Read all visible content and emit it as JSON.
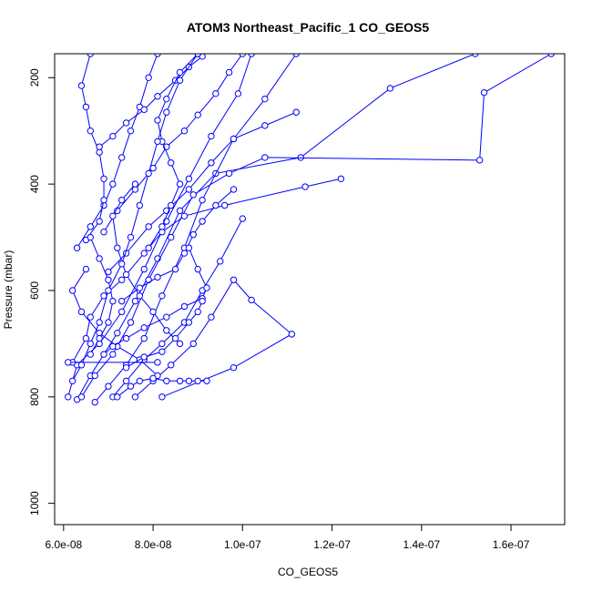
{
  "chart_data": {
    "type": "line",
    "title": "ATOM3 Northeast_Pacific_1 CO_GEOS5",
    "xlabel": "CO_GEOS5",
    "ylabel": "Pressure (mbar)",
    "xlim": [
      5.8e-08,
      1.72e-07
    ],
    "ylim": [
      1040,
      155
    ],
    "y_axis_reversed": true,
    "grid": false,
    "x_ticks": [
      {
        "value": 6e-08,
        "label": "6.0e-08"
      },
      {
        "value": 8e-08,
        "label": "8.0e-08"
      },
      {
        "value": 1e-07,
        "label": "1.0e-07"
      },
      {
        "value": 1.2e-07,
        "label": "1.2e-07"
      },
      {
        "value": 1.4e-07,
        "label": "1.4e-07"
      },
      {
        "value": 1.6e-07,
        "label": "1.6e-07"
      }
    ],
    "y_ticks": [
      {
        "value": 200,
        "label": "200"
      },
      {
        "value": 400,
        "label": "400"
      },
      {
        "value": 600,
        "label": "600"
      },
      {
        "value": 800,
        "label": "800"
      },
      {
        "value": 1000,
        "label": "1000"
      }
    ],
    "line_color": "#0000ff",
    "marker": "open-circle",
    "series": [
      {
        "points": [
          [
            6.1e-08,
            800
          ],
          [
            6.3e-08,
            740
          ],
          [
            6.8e-08,
            700
          ],
          [
            7.3e-08,
            640
          ],
          [
            7.8e-08,
            560
          ],
          [
            8.3e-08,
            470
          ],
          [
            8.8e-08,
            390
          ],
          [
            9.3e-08,
            310
          ],
          [
            9.9e-08,
            230
          ],
          [
            1.02e-07,
            155
          ]
        ]
      },
      {
        "points": [
          [
            6.3e-08,
            805
          ],
          [
            6.6e-08,
            760
          ],
          [
            6.9e-08,
            720
          ],
          [
            7.2e-08,
            680
          ],
          [
            7.6e-08,
            620
          ],
          [
            8.1e-08,
            540
          ],
          [
            8.6e-08,
            450
          ],
          [
            9.4e-08,
            380
          ],
          [
            1.13e-07,
            350
          ],
          [
            1.33e-07,
            220
          ],
          [
            1.52e-07,
            155
          ]
        ]
      },
      {
        "points": [
          [
            6.7e-08,
            810
          ],
          [
            7e-08,
            780
          ],
          [
            7.4e-08,
            740
          ],
          [
            7.8e-08,
            690
          ],
          [
            8.2e-08,
            610
          ],
          [
            8.7e-08,
            520
          ],
          [
            9.1e-08,
            430
          ],
          [
            9.8e-08,
            315
          ],
          [
            1.05e-07,
            240
          ],
          [
            1.12e-07,
            155
          ]
        ]
      },
      {
        "points": [
          [
            6.4e-08,
            800
          ],
          [
            6.7e-08,
            760
          ],
          [
            7.1e-08,
            720
          ],
          [
            7.5e-08,
            660
          ],
          [
            7.9e-08,
            580
          ],
          [
            8.4e-08,
            500
          ],
          [
            8.9e-08,
            420
          ],
          [
            9.7e-08,
            380
          ],
          [
            1.05e-07,
            350
          ],
          [
            1.53e-07,
            355
          ],
          [
            1.54e-07,
            228
          ],
          [
            1.69e-07,
            155
          ]
        ]
      },
      {
        "points": [
          [
            7.1e-08,
            800
          ],
          [
            7.4e-08,
            770
          ],
          [
            7.8e-08,
            730
          ],
          [
            8.2e-08,
            700
          ],
          [
            8.7e-08,
            660
          ],
          [
            9.1e-08,
            600
          ],
          [
            9.5e-08,
            545
          ],
          [
            1e-07,
            465
          ]
        ]
      },
      {
        "points": [
          [
            7.6e-08,
            800
          ],
          [
            8e-08,
            770
          ],
          [
            8.4e-08,
            740
          ],
          [
            8.9e-08,
            700
          ],
          [
            9.3e-08,
            650
          ],
          [
            9.8e-08,
            580
          ],
          [
            1.02e-07,
            618
          ],
          [
            1.11e-07,
            682
          ],
          [
            9.8e-08,
            745
          ],
          [
            8.2e-08,
            800
          ]
        ]
      },
      {
        "points": [
          [
            6.2e-08,
            735
          ],
          [
            6.5e-08,
            690
          ],
          [
            6.6e-08,
            650
          ],
          [
            6.9e-08,
            610
          ],
          [
            7.3e-08,
            580
          ],
          [
            7.8e-08,
            530
          ],
          [
            8.2e-08,
            490
          ],
          [
            8.7e-08,
            460
          ],
          [
            9.6e-08,
            440
          ],
          [
            1.14e-07,
            405
          ],
          [
            1.22e-07,
            390
          ]
        ]
      },
      {
        "points": [
          [
            6.5e-08,
            560
          ],
          [
            6.2e-08,
            600
          ],
          [
            6.4e-08,
            640
          ],
          [
            6.8e-08,
            680
          ],
          [
            7.2e-08,
            705
          ],
          [
            7.7e-08,
            730
          ],
          [
            8.1e-08,
            760
          ]
        ]
      },
      {
        "points": [
          [
            6.3e-08,
            520
          ],
          [
            6.6e-08,
            480
          ],
          [
            6.9e-08,
            440
          ],
          [
            7.1e-08,
            400
          ],
          [
            7.3e-08,
            350
          ],
          [
            7.5e-08,
            300
          ],
          [
            7.7e-08,
            255
          ],
          [
            7.9e-08,
            200
          ],
          [
            8.1e-08,
            155
          ]
        ]
      },
      {
        "points": [
          [
            6.9e-08,
            490
          ],
          [
            7.2e-08,
            450
          ],
          [
            7.6e-08,
            410
          ],
          [
            8e-08,
            370
          ],
          [
            8.3e-08,
            330
          ],
          [
            8.7e-08,
            300
          ],
          [
            9e-08,
            270
          ],
          [
            9.4e-08,
            230
          ],
          [
            9.7e-08,
            190
          ],
          [
            1e-07,
            155
          ]
        ]
      },
      {
        "points": [
          [
            7e-08,
            565
          ],
          [
            7.4e-08,
            530
          ],
          [
            7.9e-08,
            480
          ],
          [
            8.3e-08,
            450
          ],
          [
            8.8e-08,
            410
          ],
          [
            9.3e-08,
            360
          ],
          [
            9.8e-08,
            315
          ],
          [
            1.05e-07,
            290
          ],
          [
            1.12e-07,
            265
          ]
        ]
      },
      {
        "points": [
          [
            6.5e-08,
            505
          ],
          [
            6.8e-08,
            470
          ],
          [
            6.9e-08,
            430
          ],
          [
            6.9e-08,
            390
          ],
          [
            6.8e-08,
            340
          ],
          [
            6.6e-08,
            300
          ],
          [
            6.5e-08,
            255
          ],
          [
            6.4e-08,
            215
          ],
          [
            6.6e-08,
            155
          ]
        ]
      },
      {
        "points": [
          [
            7.3e-08,
            620
          ],
          [
            7.7e-08,
            595
          ],
          [
            8.1e-08,
            575
          ],
          [
            8.5e-08,
            560
          ],
          [
            8.7e-08,
            530
          ],
          [
            8.9e-08,
            495
          ],
          [
            9.1e-08,
            470
          ],
          [
            9.4e-08,
            440
          ],
          [
            9.8e-08,
            410
          ]
        ]
      },
      {
        "points": [
          [
            6.9e-08,
            720
          ],
          [
            7.1e-08,
            705
          ],
          [
            7.4e-08,
            690
          ],
          [
            7.8e-08,
            670
          ],
          [
            8.3e-08,
            650
          ],
          [
            8.7e-08,
            630
          ],
          [
            9.1e-08,
            615
          ],
          [
            9.2e-08,
            595
          ],
          [
            9e-08,
            560
          ],
          [
            8.8e-08,
            520
          ]
        ]
      },
      {
        "points": [
          [
            7.2e-08,
            800
          ],
          [
            7.5e-08,
            780
          ],
          [
            7.7e-08,
            770
          ],
          [
            8e-08,
            765
          ],
          [
            8.3e-08,
            770
          ],
          [
            8.6e-08,
            770
          ],
          [
            8.8e-08,
            770
          ],
          [
            9e-08,
            770
          ],
          [
            9.2e-08,
            770
          ]
        ]
      },
      {
        "points": [
          [
            6.1e-08,
            735
          ],
          [
            8.1e-08,
            735
          ]
        ]
      },
      {
        "points": [
          [
            6.8e-08,
            330
          ],
          [
            7.1e-08,
            310
          ],
          [
            7.4e-08,
            285
          ],
          [
            7.8e-08,
            260
          ],
          [
            8.1e-08,
            235
          ],
          [
            8.5e-08,
            205
          ],
          [
            8.8e-08,
            180
          ],
          [
            9.1e-08,
            160
          ]
        ]
      },
      {
        "points": [
          [
            7.6e-08,
            400
          ],
          [
            7.3e-08,
            430
          ],
          [
            7.1e-08,
            460
          ],
          [
            7.2e-08,
            520
          ],
          [
            7.4e-08,
            570
          ],
          [
            7.7e-08,
            610
          ],
          [
            8e-08,
            640
          ],
          [
            8.3e-08,
            675
          ],
          [
            8.6e-08,
            700
          ]
        ]
      },
      {
        "points": [
          [
            7.9e-08,
            520
          ],
          [
            8.2e-08,
            480
          ],
          [
            8.4e-08,
            440
          ],
          [
            8.6e-08,
            400
          ],
          [
            8.4e-08,
            360
          ],
          [
            8.2e-08,
            320
          ],
          [
            8.1e-08,
            280
          ],
          [
            8.3e-08,
            240
          ],
          [
            8.6e-08,
            190
          ],
          [
            9e-08,
            155
          ]
        ]
      },
      {
        "points": [
          [
            6.6e-08,
            720
          ],
          [
            6.8e-08,
            690
          ],
          [
            7e-08,
            660
          ],
          [
            7.1e-08,
            620
          ],
          [
            7e-08,
            580
          ],
          [
            6.8e-08,
            540
          ],
          [
            6.6e-08,
            500
          ]
        ]
      },
      {
        "points": [
          [
            7.4e-08,
            745
          ],
          [
            7.8e-08,
            725
          ],
          [
            8.2e-08,
            715
          ],
          [
            8.5e-08,
            690
          ],
          [
            8.8e-08,
            660
          ],
          [
            9e-08,
            640
          ],
          [
            9.1e-08,
            620
          ]
        ]
      },
      {
        "points": [
          [
            6.2e-08,
            770
          ],
          [
            6.4e-08,
            740
          ],
          [
            6.6e-08,
            700
          ],
          [
            6.8e-08,
            660
          ],
          [
            7e-08,
            600
          ],
          [
            7.3e-08,
            550
          ],
          [
            7.5e-08,
            500
          ],
          [
            7.7e-08,
            440
          ],
          [
            7.9e-08,
            380
          ],
          [
            8.1e-08,
            320
          ],
          [
            8.3e-08,
            265
          ],
          [
            8.6e-08,
            205
          ],
          [
            9e-08,
            155
          ]
        ]
      }
    ]
  }
}
